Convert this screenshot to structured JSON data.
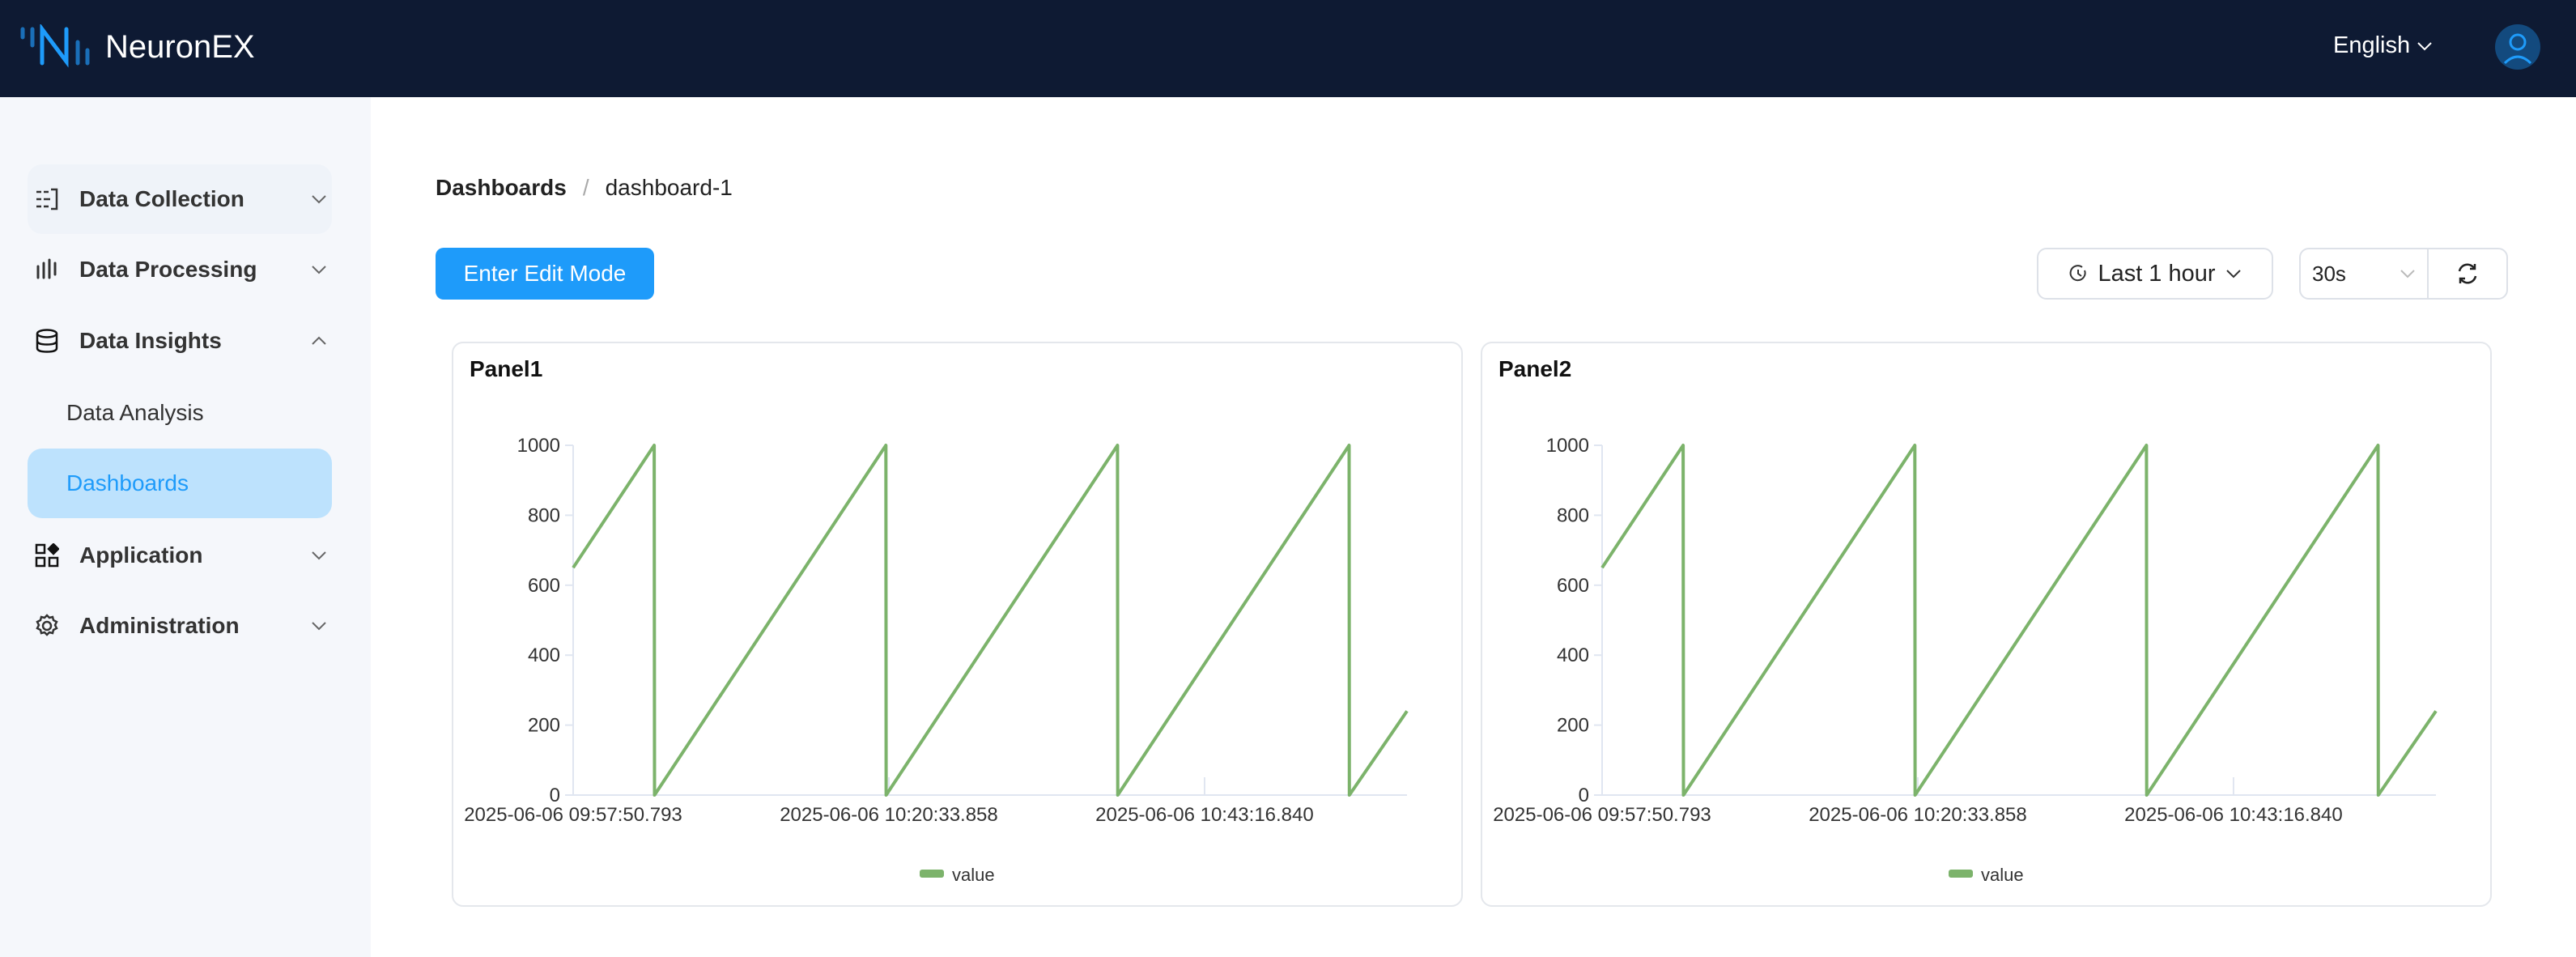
{
  "header": {
    "brand": "NeuronEX",
    "language": "English",
    "colors": {
      "bg": "#0e1a33",
      "accent": "#1e9bfa"
    }
  },
  "sidebar": {
    "items": [
      {
        "label": "Data Collection",
        "icon": "data-collection-icon",
        "expanded": false
      },
      {
        "label": "Data Processing",
        "icon": "data-processing-icon",
        "expanded": false
      },
      {
        "label": "Data Insights",
        "icon": "database-icon",
        "expanded": true
      },
      {
        "label": "Data Analysis",
        "sub": true
      },
      {
        "label": "Dashboards",
        "sub": true,
        "active": true
      },
      {
        "label": "Application",
        "icon": "application-icon",
        "expanded": false
      },
      {
        "label": "Administration",
        "icon": "gear-icon",
        "expanded": false
      }
    ]
  },
  "breadcrumb": {
    "root": "Dashboards",
    "separator": "/",
    "current": "dashboard-1"
  },
  "toolbar": {
    "edit_label": "Enter Edit Mode",
    "time_range": "Last 1 hour",
    "refresh_interval": "30s"
  },
  "panels": [
    {
      "title": "Panel1"
    },
    {
      "title": "Panel2"
    }
  ],
  "chart_data": [
    {
      "type": "line",
      "title": "Panel1",
      "series": [
        {
          "name": "value",
          "color": "#7cb36b",
          "points": [
            [
              "2025-06-06 09:57:50.793",
              650
            ],
            [
              "2025-06-06 10:03:40.8",
              1000
            ],
            [
              "2025-06-06 10:03:42",
              0
            ],
            [
              "2025-06-06 10:20:20.8",
              1000
            ],
            [
              "2025-06-06 10:20:22",
              0
            ],
            [
              "2025-06-06 10:37:00.8",
              1000
            ],
            [
              "2025-06-06 10:37:02",
              0
            ],
            [
              "2025-06-06 10:53:40.8",
              1000
            ],
            [
              "2025-06-06 10:53:42",
              0
            ],
            [
              "2025-06-06 10:57:50.793",
              240
            ]
          ]
        }
      ],
      "xlim": [
        "2025-06-06 09:57:50.793",
        "2025-06-06 10:57:50.793"
      ],
      "xticks": [
        "2025-06-06 09:57:50.793",
        "2025-06-06 10:20:33.858",
        "2025-06-06 10:43:16.840"
      ],
      "ylim": [
        0,
        1000
      ],
      "yticks": [
        "0",
        "200",
        "400",
        "600",
        "800",
        "1000"
      ],
      "legend": "bottom"
    },
    {
      "type": "line",
      "title": "Panel2",
      "series": [
        {
          "name": "value",
          "color": "#7cb36b",
          "points": [
            [
              "2025-06-06 09:57:50.793",
              650
            ],
            [
              "2025-06-06 10:03:40.8",
              1000
            ],
            [
              "2025-06-06 10:03:42",
              0
            ],
            [
              "2025-06-06 10:20:20.8",
              1000
            ],
            [
              "2025-06-06 10:20:22",
              0
            ],
            [
              "2025-06-06 10:37:00.8",
              1000
            ],
            [
              "2025-06-06 10:37:02",
              0
            ],
            [
              "2025-06-06 10:53:40.8",
              1000
            ],
            [
              "2025-06-06 10:53:42",
              0
            ],
            [
              "2025-06-06 10:57:50.793",
              240
            ]
          ]
        }
      ],
      "xlim": [
        "2025-06-06 09:57:50.793",
        "2025-06-06 10:57:50.793"
      ],
      "xticks": [
        "2025-06-06 09:57:50.793",
        "2025-06-06 10:20:33.858",
        "2025-06-06 10:43:16.840"
      ],
      "ylim": [
        0,
        1000
      ],
      "yticks": [
        "0",
        "200",
        "400",
        "600",
        "800",
        "1000"
      ],
      "legend": "bottom"
    }
  ]
}
